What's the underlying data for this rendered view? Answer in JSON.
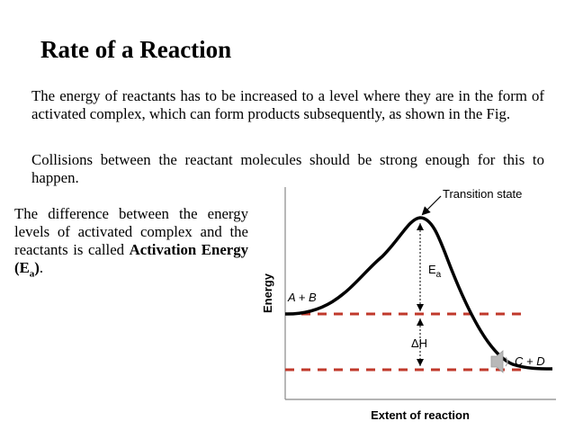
{
  "slide": {
    "title": "Rate of a Reaction",
    "paragraph1": "The energy of reactants has to be increased to a level where they are in the form of activated complex, which can form products subsequently, as shown in the Fig.",
    "paragraph2": "Collisions between the reactant molecules should be strong enough for this to happen.",
    "side_text": "The difference between the energy levels of activated complex and the reactants is called ",
    "side_bold": "Activation Energy (E",
    "side_bold_sub": "a",
    "side_bold_end": ")",
    "side_end": "."
  },
  "diagram": {
    "y_axis_label": "Energy",
    "x_axis_label": "Extent of reaction",
    "transition_label": "Transition state",
    "reactants_label": "A + B",
    "products_label": "C + D",
    "ea_label": "E",
    "ea_sub": "a",
    "dh_label": "ΔH",
    "colors": {
      "curve": "#000000",
      "dashed_levels": "#c0392b",
      "arrows": "#000000"
    },
    "icons": [
      "speaker-icon"
    ]
  }
}
